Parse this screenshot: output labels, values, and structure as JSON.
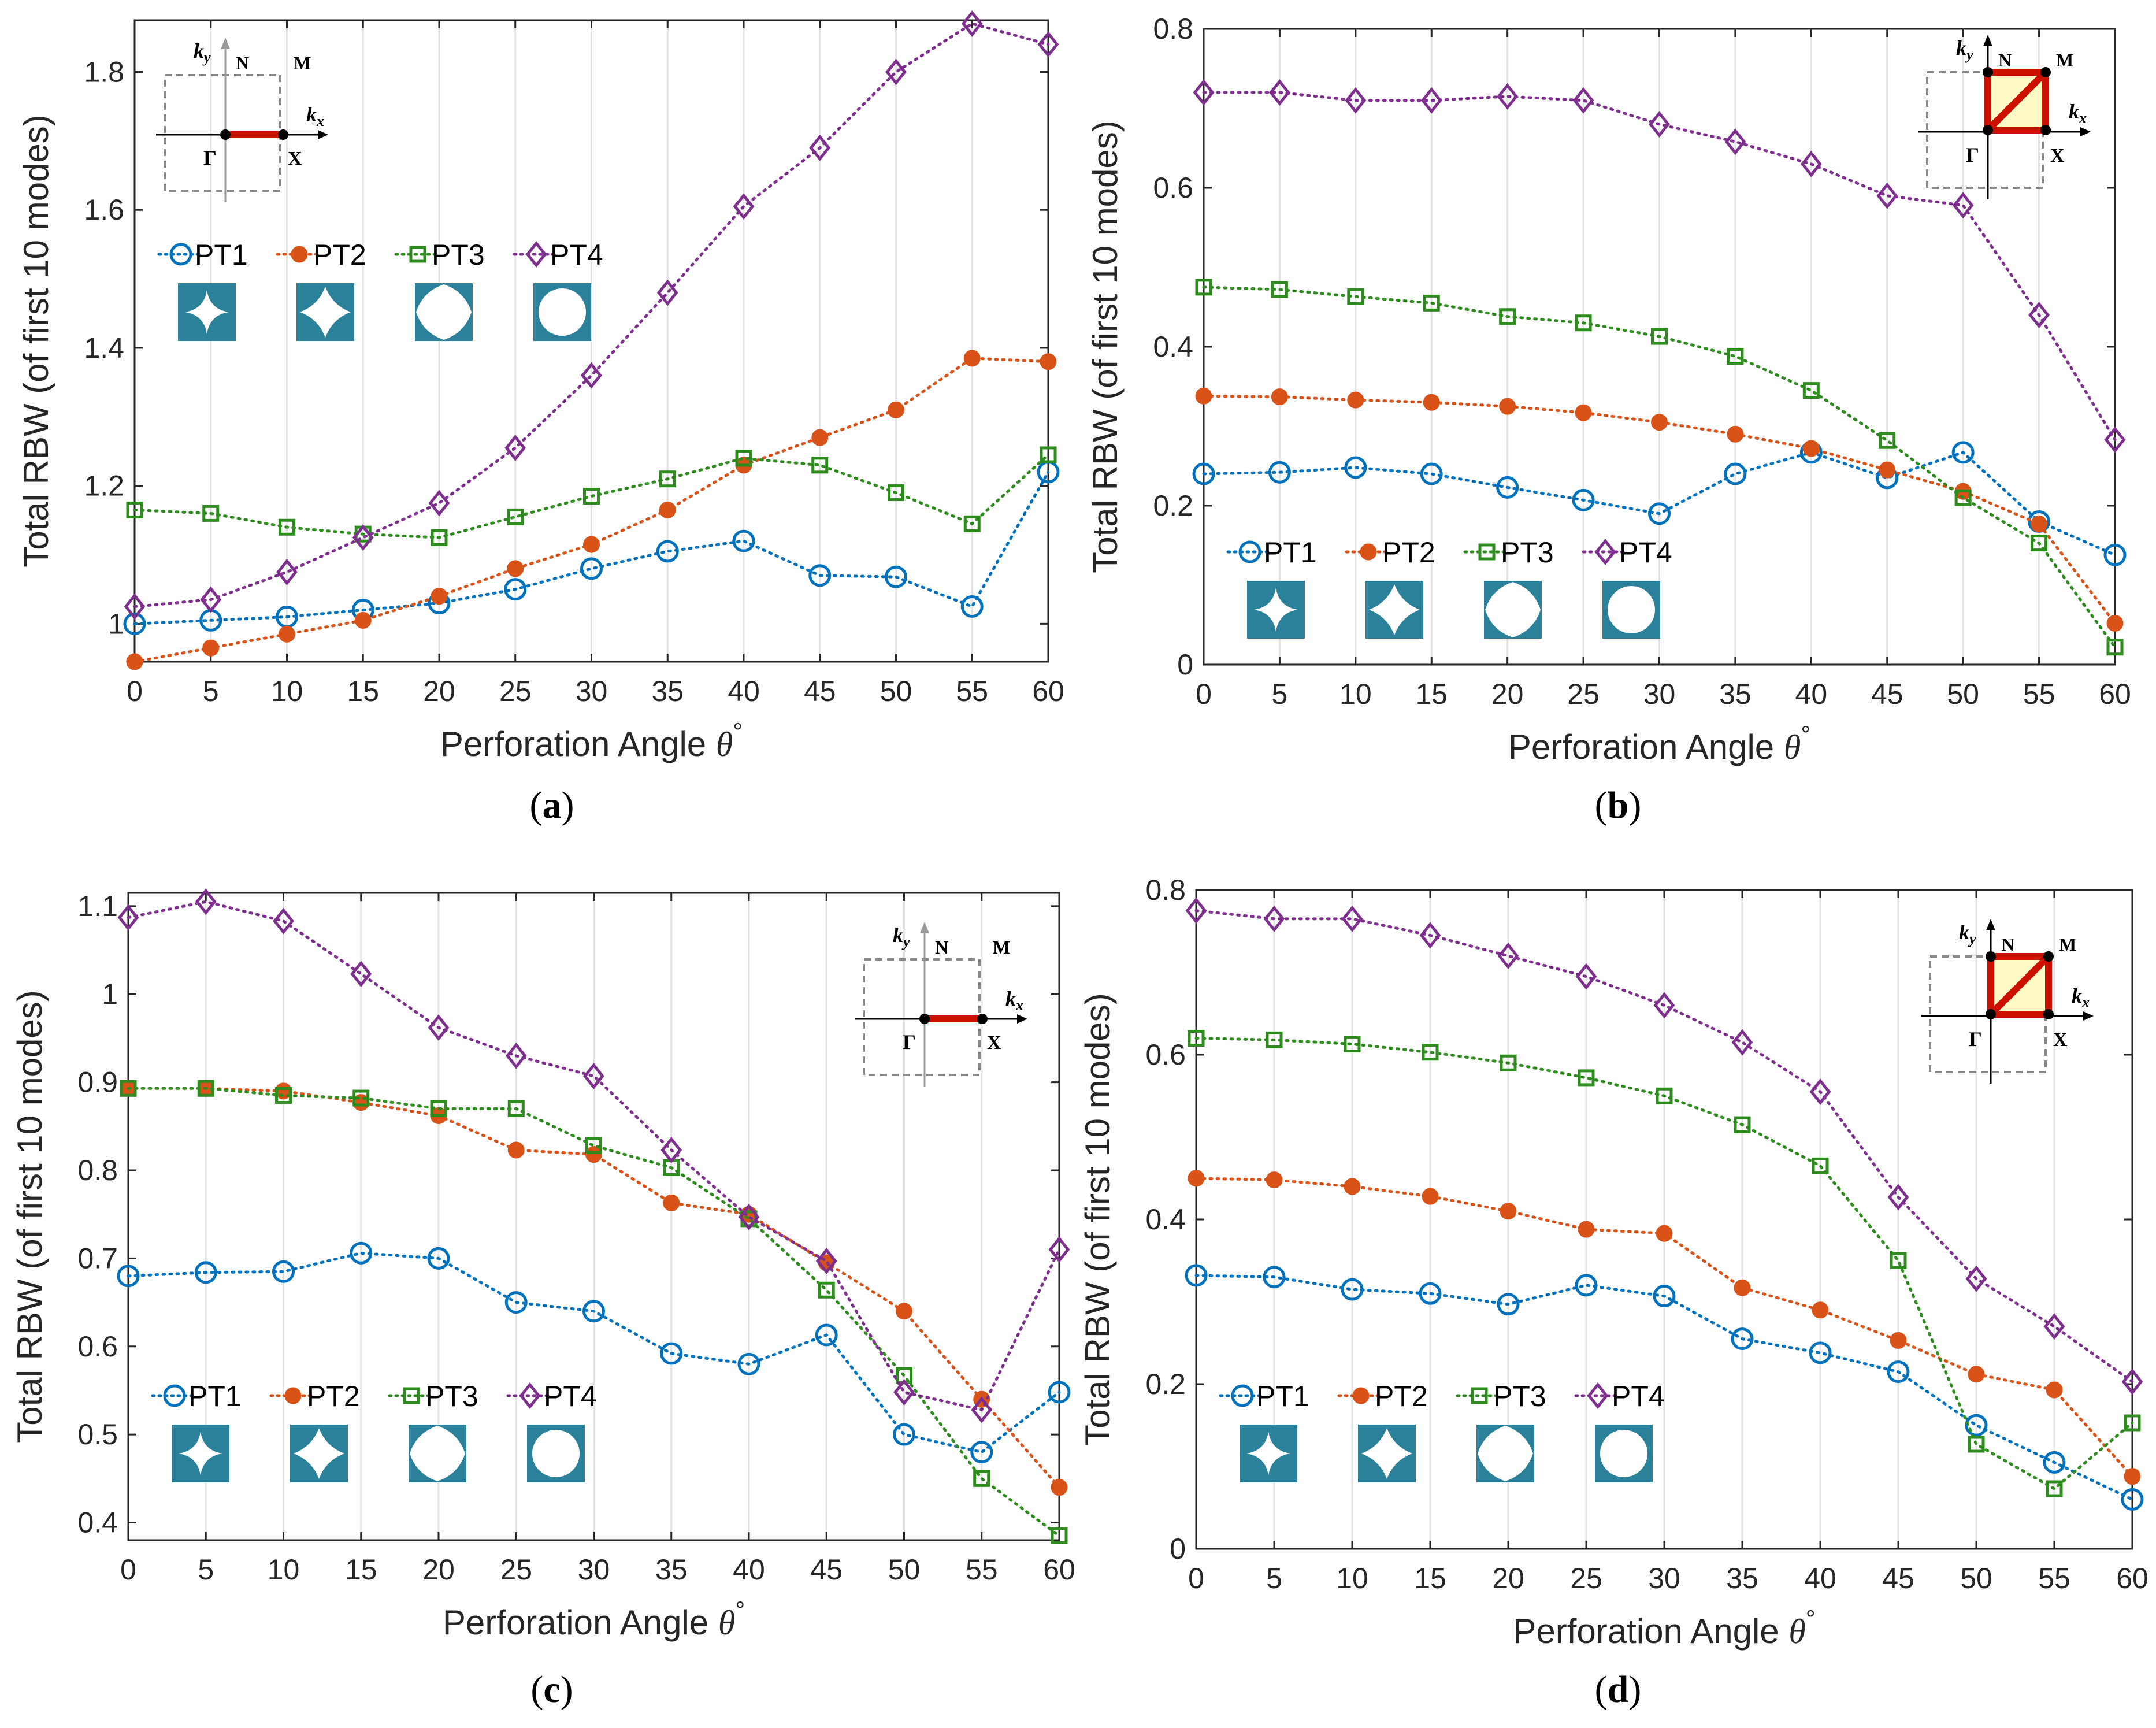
{
  "chart_data": [
    {
      "type": "line",
      "caption": "a",
      "path_inset": "Gamma-X",
      "xlabel": "Perforation Angle",
      "xlabel_symbol": "θ",
      "xlabel_sup": "°",
      "ylabel": "Total RBW (of first 10 modes)",
      "x": [
        0,
        5,
        10,
        15,
        20,
        25,
        30,
        35,
        40,
        45,
        50,
        55,
        60
      ],
      "xticks": [
        "0",
        "5",
        "10",
        "15",
        "20",
        "25",
        "30",
        "35",
        "40",
        "45",
        "50",
        "55",
        "60"
      ],
      "xlim": [
        0,
        60
      ],
      "ylim": [
        0.945,
        1.875
      ],
      "yticks": [
        1,
        1.2,
        1.4,
        1.6,
        1.8
      ],
      "ytick_labels": [
        "1",
        "1.2",
        "1.4",
        "1.6",
        "1.8"
      ],
      "grid": "vertical",
      "legend": "upper-left",
      "series": [
        {
          "name": "PT1",
          "values": [
            1.0,
            1.005,
            1.01,
            1.02,
            1.03,
            1.05,
            1.08,
            1.105,
            1.12,
            1.07,
            1.068,
            1.025,
            1.22
          ]
        },
        {
          "name": "PT2",
          "values": [
            0.945,
            0.965,
            0.985,
            1.005,
            1.04,
            1.08,
            1.115,
            1.165,
            1.23,
            1.27,
            1.31,
            1.385,
            1.38
          ]
        },
        {
          "name": "PT3",
          "values": [
            1.165,
            1.16,
            1.14,
            1.13,
            1.125,
            1.155,
            1.185,
            1.21,
            1.24,
            1.23,
            1.19,
            1.145,
            1.245
          ]
        },
        {
          "name": "PT4",
          "values": [
            1.025,
            1.035,
            1.075,
            1.125,
            1.175,
            1.255,
            1.36,
            1.48,
            1.605,
            1.69,
            1.8,
            1.87,
            1.84
          ]
        }
      ]
    },
    {
      "type": "line",
      "caption": "b",
      "path_inset": "Gamma-X-M-N",
      "xlabel": "Perforation Angle",
      "xlabel_symbol": "θ",
      "xlabel_sup": "°",
      "ylabel": "Total RBW (of first 10 modes)",
      "x": [
        0,
        5,
        10,
        15,
        20,
        25,
        30,
        35,
        40,
        45,
        50,
        55,
        60
      ],
      "xticks": [
        "0",
        "5",
        "10",
        "15",
        "20",
        "25",
        "30",
        "35",
        "40",
        "45",
        "50",
        "55",
        "60"
      ],
      "xlim": [
        0,
        60
      ],
      "ylim": [
        0,
        0.8
      ],
      "yticks": [
        0,
        0.2,
        0.4,
        0.6,
        0.8
      ],
      "ytick_labels": [
        "0",
        "0.2",
        "0.4",
        "0.6",
        "0.8"
      ],
      "grid": "vertical",
      "legend": "lower-left",
      "series": [
        {
          "name": "PT1",
          "values": [
            0.24,
            0.242,
            0.248,
            0.24,
            0.223,
            0.207,
            0.19,
            0.24,
            0.267,
            0.235,
            0.267,
            0.18,
            0.138
          ]
        },
        {
          "name": "PT2",
          "values": [
            0.338,
            0.337,
            0.333,
            0.33,
            0.325,
            0.317,
            0.305,
            0.29,
            0.272,
            0.245,
            0.218,
            0.177,
            0.052
          ]
        },
        {
          "name": "PT3",
          "values": [
            0.475,
            0.472,
            0.463,
            0.455,
            0.438,
            0.43,
            0.413,
            0.388,
            0.345,
            0.282,
            0.21,
            0.153,
            0.022
          ]
        },
        {
          "name": "PT4",
          "values": [
            0.72,
            0.72,
            0.71,
            0.71,
            0.715,
            0.71,
            0.68,
            0.658,
            0.63,
            0.59,
            0.578,
            0.44,
            0.283
          ]
        }
      ]
    },
    {
      "type": "line",
      "caption": "c",
      "path_inset": "Gamma-X",
      "xlabel": "Perforation Angle",
      "xlabel_symbol": "θ",
      "xlabel_sup": "°",
      "ylabel": "Total RBW (of first 10 modes)",
      "x": [
        0,
        5,
        10,
        15,
        20,
        25,
        30,
        35,
        40,
        45,
        50,
        55,
        60
      ],
      "xticks": [
        "0",
        "5",
        "10",
        "15",
        "20",
        "25",
        "30",
        "35",
        "40",
        "45",
        "50",
        "55",
        "60"
      ],
      "xlim": [
        0,
        60
      ],
      "ylim": [
        0.38,
        1.115
      ],
      "yticks": [
        0.4,
        0.5,
        0.6,
        0.7,
        0.8,
        0.9,
        1,
        1.1
      ],
      "ytick_labels": [
        "0.4",
        "0.5",
        "0.6",
        "0.7",
        "0.8",
        "0.9",
        "1",
        "1.1"
      ],
      "grid": "vertical",
      "legend": "lower-left",
      "series": [
        {
          "name": "PT1",
          "values": [
            0.68,
            0.684,
            0.685,
            0.706,
            0.7,
            0.65,
            0.64,
            0.592,
            0.58,
            0.613,
            0.5,
            0.48,
            0.548
          ]
        },
        {
          "name": "PT2",
          "values": [
            0.893,
            0.893,
            0.89,
            0.877,
            0.862,
            0.823,
            0.818,
            0.763,
            0.75,
            0.695,
            0.64,
            0.54,
            0.44
          ]
        },
        {
          "name": "PT3",
          "values": [
            0.893,
            0.893,
            0.885,
            0.882,
            0.87,
            0.87,
            0.828,
            0.803,
            0.745,
            0.664,
            0.567,
            0.45,
            0.385
          ]
        },
        {
          "name": "PT4",
          "values": [
            1.087,
            1.105,
            1.083,
            1.023,
            0.962,
            0.93,
            0.907,
            0.823,
            0.747,
            0.697,
            0.548,
            0.528,
            0.71
          ]
        }
      ]
    },
    {
      "type": "line",
      "caption": "d",
      "path_inset": "Gamma-X-M-N",
      "xlabel": "Perforation Angle",
      "xlabel_symbol": "θ",
      "xlabel_sup": "°",
      "ylabel": "Total RBW (of first 10 modes)",
      "x": [
        0,
        5,
        10,
        15,
        20,
        25,
        30,
        35,
        40,
        45,
        50,
        55,
        60
      ],
      "xticks": [
        "0",
        "5",
        "10",
        "15",
        "20",
        "25",
        "30",
        "35",
        "40",
        "45",
        "50",
        "55",
        "60"
      ],
      "xlim": [
        0,
        60
      ],
      "ylim": [
        0,
        0.8
      ],
      "yticks": [
        0,
        0.2,
        0.4,
        0.6,
        0.8
      ],
      "ytick_labels": [
        "0",
        "0.2",
        "0.4",
        "0.6",
        "0.8"
      ],
      "grid": "vertical",
      "legend": "lower-left",
      "series": [
        {
          "name": "PT1",
          "values": [
            0.332,
            0.33,
            0.315,
            0.31,
            0.297,
            0.32,
            0.307,
            0.255,
            0.238,
            0.215,
            0.15,
            0.105,
            0.06
          ]
        },
        {
          "name": "PT2",
          "values": [
            0.45,
            0.448,
            0.44,
            0.428,
            0.41,
            0.388,
            0.383,
            0.317,
            0.29,
            0.253,
            0.212,
            0.193,
            0.088
          ]
        },
        {
          "name": "PT3",
          "values": [
            0.62,
            0.618,
            0.613,
            0.603,
            0.59,
            0.572,
            0.55,
            0.515,
            0.465,
            0.35,
            0.127,
            0.073,
            0.153
          ]
        },
        {
          "name": "PT4",
          "values": [
            0.775,
            0.765,
            0.765,
            0.745,
            0.72,
            0.695,
            0.66,
            0.615,
            0.555,
            0.427,
            0.328,
            0.27,
            0.203
          ]
        }
      ]
    }
  ],
  "legend_entries": [
    {
      "name": "PT1",
      "color": "#0072BD",
      "marker": "circle-open"
    },
    {
      "name": "PT2",
      "color": "#D95319",
      "marker": "circle-filled"
    },
    {
      "name": "PT3",
      "color": "#2E8B1E",
      "marker": "square-open"
    },
    {
      "name": "PT4",
      "color": "#7E2F8E",
      "marker": "diamond-open"
    }
  ],
  "shape_colors": {
    "tile": "#2B8199",
    "hole": "#ffffff"
  },
  "inset_labels": {
    "ky": "k",
    "ky_sub": "y",
    "kx": "k",
    "kx_sub": "x",
    "N": "N",
    "M": "M",
    "Gamma": "Γ",
    "X": "X"
  },
  "inset_colors": {
    "path": "#CC1100",
    "fill": "#FFF9C4",
    "box": "#888888",
    "axis_faint": "#999999"
  }
}
